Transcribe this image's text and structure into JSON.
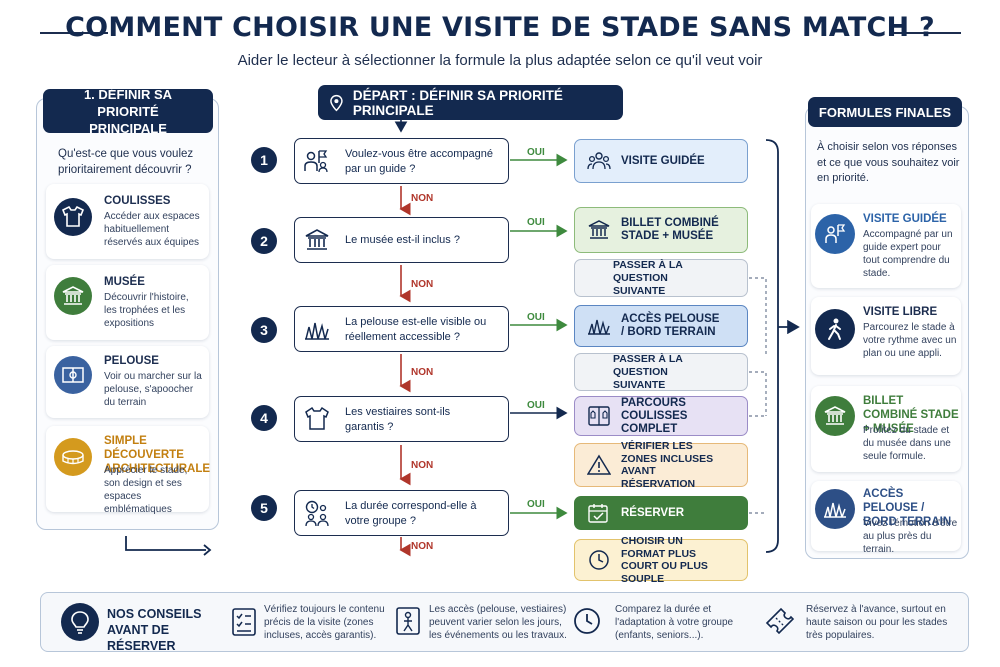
{
  "header": {
    "title": "COMMENT CHOISIR UNE VISITE DE STADE SANS MATCH ?",
    "subtitle": "Aider le lecteur à sélectionner la formule la plus adaptée selon ce qu'il veut voir"
  },
  "left_panel": {
    "heading": "1. DÉFINIR SA PRIORITÉ PRINCIPALE",
    "question": "Qu'est-ce que vous voulez prioritairement découvrir ?",
    "items": [
      {
        "title": "COULISSES",
        "text": "Accéder aux espaces habituellement réservés aux équipes",
        "icon": "jersey-icon",
        "color": "#13294f"
      },
      {
        "title": "MUSÉE",
        "text": "Découvrir l'histoire, les trophées et les expositions",
        "icon": "museum-icon",
        "color": "#3f7d3c"
      },
      {
        "title": "PELOUSE",
        "text": "Voir ou marcher sur la pelouse, s'apoocher du terrain",
        "icon": "field-icon",
        "color": "#3a62a0"
      },
      {
        "title": "SIMPLE DÉCOUVERTE ARCHITECTURALE",
        "text": "Apprécier le stade, son design et ses espaces emblématiques",
        "icon": "stadium-icon",
        "color": "#d49a1e"
      }
    ]
  },
  "flow": {
    "start_label": "DÉPART : DÉFINIR SA PRIORITÉ PRINCIPALE",
    "yes_label": "OUI",
    "no_label": "NON",
    "questions": [
      {
        "num": "1",
        "text": "Voulez-vous être accompagné par un guide ?",
        "icon": "guide-icon"
      },
      {
        "num": "2",
        "text": "Le musée est-il inclus ?",
        "icon": "museum-icon"
      },
      {
        "num": "3",
        "text": "La pelouse est-elle visible ou réellement accessible ?",
        "icon": "grass-icon"
      },
      {
        "num": "4",
        "text": "Les vestiaires sont-ils garantis ?",
        "icon": "jersey-icon"
      },
      {
        "num": "5",
        "text": "La durée correspond-elle à votre groupe ?",
        "icon": "clock-group-icon"
      }
    ],
    "results": [
      {
        "text": "VISITE GUIDÉE",
        "icon": "group-icon"
      },
      {
        "text": "BILLET COMBINÉ STADE + MUSÉE",
        "icon": "museum-icon"
      },
      {
        "text": "PASSER À LA QUESTION SUIVANTE",
        "icon": ""
      },
      {
        "text": "ACCÈS PELOUSE / BORD TERRAIN",
        "icon": "grass-icon"
      },
      {
        "text": "PASSER À LA QUESTION SUIVANTE",
        "icon": ""
      },
      {
        "text": "PARCOURS COULISSES COMPLET",
        "icon": "locker-icon"
      },
      {
        "text": "VÉRIFIER LES ZONES INCLUSES AVANT RÉSERVATION",
        "icon": "warning-icon"
      },
      {
        "text": "RÉSERVER",
        "icon": "calendar-icon"
      },
      {
        "text": "CHOISIR UN FORMAT PLUS COURT OU PLUS SOUPLE",
        "icon": "clock-icon"
      }
    ],
    "result_colors": {
      "blue": "#e3eefb",
      "green": "#e6f1df",
      "grey": "#f1f3f6",
      "purple": "#e7e1f4",
      "orange": "#fbecd6",
      "dark_green": "#3f7d3c",
      "yellow": "#fcf1d2"
    }
  },
  "right_panel": {
    "heading": "FORMULES FINALES",
    "intro": "À choisir selon vos réponses et ce que vous souhaitez voir en priorité.",
    "items": [
      {
        "title": "VISITE GUIDÉE",
        "text": "Accompagné par un guide expert pour tout comprendre du stade.",
        "icon": "guide-icon",
        "color": "#2c63a8"
      },
      {
        "title": "VISITE LIBRE",
        "text": "Parcourez le stade à votre rythme avec un plan ou une appli.",
        "icon": "walker-icon",
        "color": "#13294f"
      },
      {
        "title": "BILLET COMBINÉ STADE + MUSÉE",
        "text": "Profitez du stade et du musée dans une seule formule.",
        "icon": "museum-icon",
        "color": "#3f7d3c"
      },
      {
        "title": "ACCÈS PELOUSE / BORD TERRAIN",
        "text": "Vivez l'émotion d'être au plus près du terrain.",
        "icon": "grass-icon",
        "color": "#2d4f86"
      }
    ]
  },
  "tips": {
    "heading": "NOS CONSEILS AVANT DE RÉSERVER",
    "items": [
      {
        "text": "Vérifiez toujours le contenu précis de la visite (zones incluses, accès garantis).",
        "icon": "checklist-icon"
      },
      {
        "text": "Les accès (pelouse, vestiaires) peuvent varier selon les jours, les événements ou les travaux.",
        "icon": "access-icon"
      },
      {
        "text": "Comparez la durée et l'adaptation à votre groupe (enfants, seniors...).",
        "icon": "clock-icon"
      },
      {
        "text": "Réservez à l'avance, surtout en haute saison ou pour les stades très populaires.",
        "icon": "ticket-icon"
      }
    ]
  }
}
